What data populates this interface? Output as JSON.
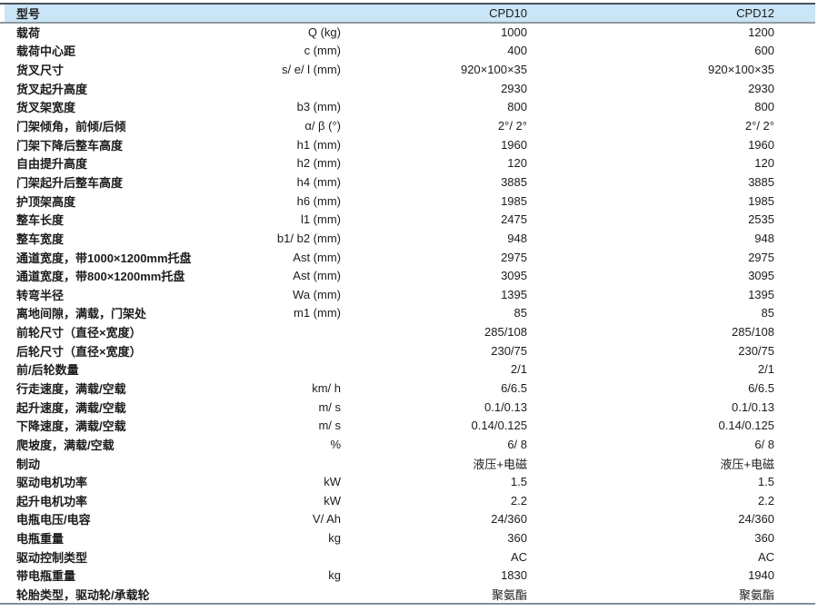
{
  "table": {
    "header": {
      "model_label": "型号",
      "unit_spacer": "",
      "col_cpd10": "CPD10",
      "col_cpd12": "CPD12"
    },
    "colors": {
      "header_background": "#cae5f5",
      "top_border": "#49525c",
      "header_underline": "#8f9aa3",
      "bottom_border": "#85909a",
      "text": "#1c1c1c"
    },
    "rows": [
      {
        "label": "载荷",
        "unit": "Q (kg)",
        "cpd10": "1000",
        "cpd12": "1200"
      },
      {
        "label": "载荷中心距",
        "unit": "c (mm)",
        "cpd10": "400",
        "cpd12": "600"
      },
      {
        "label": "货叉尺寸",
        "unit": "s/ e/ l (mm)",
        "cpd10": "920×100×35",
        "cpd12": "920×100×35"
      },
      {
        "label": "货叉起升高度",
        "unit": "",
        "cpd10": "2930",
        "cpd12": "2930"
      },
      {
        "label": "货叉架宽度",
        "unit": "b3 (mm)",
        "cpd10": "800",
        "cpd12": "800"
      },
      {
        "label": "门架倾角，前倾/后倾",
        "unit": "α/ β (°)",
        "cpd10": "2°/ 2°",
        "cpd12": "2°/ 2°"
      },
      {
        "label": "门架下降后整车高度",
        "unit": "h1 (mm)",
        "cpd10": "1960",
        "cpd12": "1960"
      },
      {
        "label": "自由提升高度",
        "unit": "h2 (mm)",
        "cpd10": "120",
        "cpd12": "120"
      },
      {
        "label": "门架起升后整车高度",
        "unit": "h4 (mm)",
        "cpd10": "3885",
        "cpd12": "3885"
      },
      {
        "label": "护顶架高度",
        "unit": "h6 (mm)",
        "cpd10": "1985",
        "cpd12": "1985"
      },
      {
        "label": "整车长度",
        "unit": "l1 (mm)",
        "cpd10": "2475",
        "cpd12": "2535"
      },
      {
        "label": "整车宽度",
        "unit": "b1/ b2 (mm)",
        "cpd10": "948",
        "cpd12": "948"
      },
      {
        "label": "通道宽度，带1000×1200mm托盘",
        "unit": "Ast (mm)",
        "cpd10": "2975",
        "cpd12": "2975"
      },
      {
        "label": "通道宽度，带800×1200mm托盘",
        "unit": "Ast (mm)",
        "cpd10": "3095",
        "cpd12": "3095"
      },
      {
        "label": "转弯半径",
        "unit": "Wa (mm)",
        "cpd10": "1395",
        "cpd12": "1395"
      },
      {
        "label": "离地间隙，满载，门架处",
        "unit": "m1 (mm)",
        "cpd10": "85",
        "cpd12": "85"
      },
      {
        "label": "前轮尺寸（直径×宽度）",
        "unit": "",
        "cpd10": "285/108",
        "cpd12": "285/108"
      },
      {
        "label": "后轮尺寸（直径×宽度）",
        "unit": "",
        "cpd10": "230/75",
        "cpd12": "230/75"
      },
      {
        "label": "前/后轮数量",
        "unit": "",
        "cpd10": "2/1",
        "cpd12": "2/1"
      },
      {
        "label": "行走速度，满载/空载",
        "unit": "km/ h",
        "cpd10": "6/6.5",
        "cpd12": "6/6.5"
      },
      {
        "label": "起升速度，满载/空载",
        "unit": "m/ s",
        "cpd10": "0.1/0.13",
        "cpd12": "0.1/0.13"
      },
      {
        "label": "下降速度，满载/空载",
        "unit": "m/ s",
        "cpd10": "0.14/0.125",
        "cpd12": "0.14/0.125"
      },
      {
        "label": "爬坡度，满载/空载",
        "unit": "%",
        "cpd10": "6/ 8",
        "cpd12": "6/ 8"
      },
      {
        "label": "制动",
        "unit": "",
        "cpd10": "液压+电磁",
        "cpd12": "液压+电磁"
      },
      {
        "label": "驱动电机功率",
        "unit": "kW",
        "cpd10": "1.5",
        "cpd12": "1.5"
      },
      {
        "label": "起升电机功率",
        "unit": "kW",
        "cpd10": "2.2",
        "cpd12": "2.2"
      },
      {
        "label": "电瓶电压/电容",
        "unit": "V/ Ah",
        "cpd10": "24/360",
        "cpd12": "24/360"
      },
      {
        "label": "电瓶重量",
        "unit": "kg",
        "cpd10": "360",
        "cpd12": "360"
      },
      {
        "label": "驱动控制类型",
        "unit": "",
        "cpd10": "AC",
        "cpd12": "AC"
      },
      {
        "label": "带电瓶重量",
        "unit": "kg",
        "cpd10": "1830",
        "cpd12": "1940"
      },
      {
        "label": "轮胎类型，驱动轮/承载轮",
        "unit": "",
        "cpd10": "聚氨酯",
        "cpd12": "聚氨酯"
      }
    ]
  }
}
